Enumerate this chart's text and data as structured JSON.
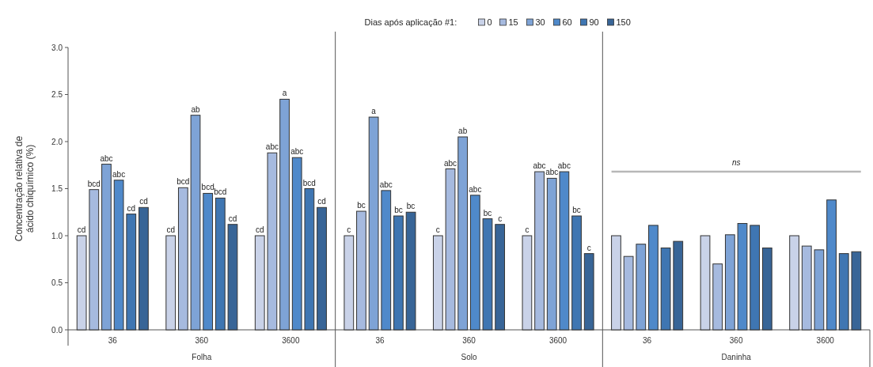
{
  "chart_data": {
    "type": "bar",
    "legend_title": "Dias após aplicação #1:",
    "ylabel": "Concentração relativa de ácido chiquímico (%)",
    "categories": [
      "36",
      "360",
      "3600",
      "36",
      "360",
      "3600",
      "36",
      "360",
      "3600"
    ],
    "series": [
      {
        "name": "0",
        "color": "#c9d2e8",
        "values": [
          1.0,
          1.0,
          1.0,
          1.0,
          1.0,
          1.0,
          1.0,
          1.0,
          1.0
        ],
        "value_labels": [
          "cd",
          "cd",
          "cd",
          "c",
          "c",
          "c",
          null,
          null,
          null
        ]
      },
      {
        "name": "15",
        "color": "#a6badf",
        "values": [
          1.49,
          1.51,
          1.88,
          1.26,
          1.71,
          1.68,
          0.78,
          0.7,
          0.89
        ],
        "value_labels": [
          "bcd",
          "bcd",
          "abc",
          "bc",
          "abc",
          "abc",
          null,
          null,
          null
        ]
      },
      {
        "name": "30",
        "color": "#7ea3d6",
        "values": [
          1.76,
          2.28,
          2.45,
          2.26,
          2.05,
          1.61,
          0.91,
          1.01,
          0.85
        ],
        "value_labels": [
          "abc",
          "ab",
          "a",
          "a",
          "ab",
          "abc",
          null,
          null,
          null
        ]
      },
      {
        "name": "60",
        "color": "#4f89ca",
        "values": [
          1.59,
          1.45,
          1.83,
          1.48,
          1.43,
          1.68,
          1.11,
          1.13,
          1.38
        ],
        "value_labels": [
          "abc",
          "bcd",
          "abc",
          "abc",
          "abc",
          "abc",
          null,
          null,
          null
        ]
      },
      {
        "name": "90",
        "color": "#3f76b2",
        "values": [
          1.23,
          1.4,
          1.5,
          1.21,
          1.18,
          1.21,
          0.87,
          1.11,
          0.81
        ],
        "value_labels": [
          "cd",
          "bcd",
          "bcd",
          "bc",
          "bc",
          "bc",
          null,
          null,
          null
        ]
      },
      {
        "name": "150",
        "color": "#386597",
        "values": [
          1.3,
          1.12,
          1.3,
          1.25,
          1.12,
          0.81,
          0.94,
          0.87,
          0.83
        ],
        "value_labels": [
          "cd",
          "cd",
          "cd",
          "bc",
          "c",
          "c",
          null,
          null,
          null
        ]
      }
    ],
    "ylim": [
      0,
      3
    ],
    "yticks": [
      {
        "value": 0,
        "label": "0.0"
      },
      {
        "value": 0.5,
        "label": "0.5"
      },
      {
        "value": 1,
        "label": "1.0"
      },
      {
        "value": 1.5,
        "label": "1.5"
      },
      {
        "value": 2,
        "label": "2.0"
      },
      {
        "value": 2.5,
        "label": "2.5"
      },
      {
        "value": 3,
        "label": "3.0"
      }
    ],
    "legend": "top",
    "grid": false,
    "annotations": [
      "Folha",
      "Solo",
      "Daninha",
      "ns"
    ]
  }
}
